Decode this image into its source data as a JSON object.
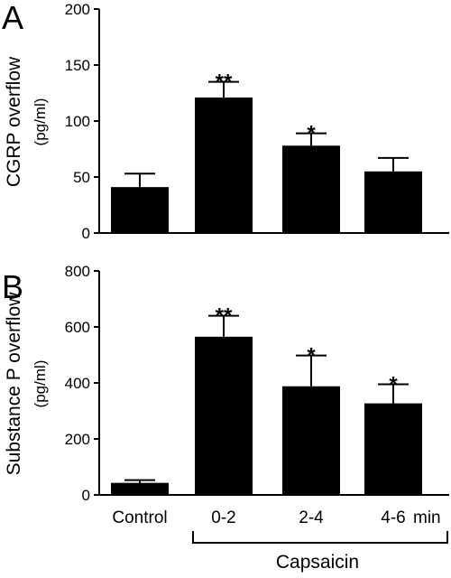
{
  "chart_data": [
    {
      "type": "bar",
      "panel": "A",
      "ylabel": "CGRP overflow",
      "yunit": "(pg/ml)",
      "ylim": [
        0,
        200
      ],
      "yticks": [
        "0",
        "50",
        "100",
        "150",
        "200"
      ],
      "categories": [
        "Control",
        "0-2",
        "2-4",
        "4-6"
      ],
      "values": [
        41,
        121,
        78,
        55
      ],
      "errors": [
        12,
        14,
        11,
        12
      ],
      "significance": [
        "",
        "**",
        "*",
        ""
      ]
    },
    {
      "type": "bar",
      "panel": "B",
      "ylabel": "Substance P overflow",
      "yunit": "(pg/ml)",
      "ylim": [
        0,
        800
      ],
      "yticks": [
        "0",
        "200",
        "400",
        "600",
        "800"
      ],
      "categories": [
        "Control",
        "0-2",
        "2-4",
        "4-6"
      ],
      "values": [
        43,
        565,
        388,
        327
      ],
      "errors": [
        10,
        75,
        110,
        68
      ],
      "significance": [
        "",
        "**",
        "*",
        "*"
      ]
    }
  ],
  "x_axis": {
    "labels": [
      "Control",
      "0-2",
      "2-4",
      "4-6"
    ],
    "unit": "min",
    "group_label": "Capsaicin"
  },
  "colors": {
    "bar": "#000000",
    "axis": "#000000"
  }
}
